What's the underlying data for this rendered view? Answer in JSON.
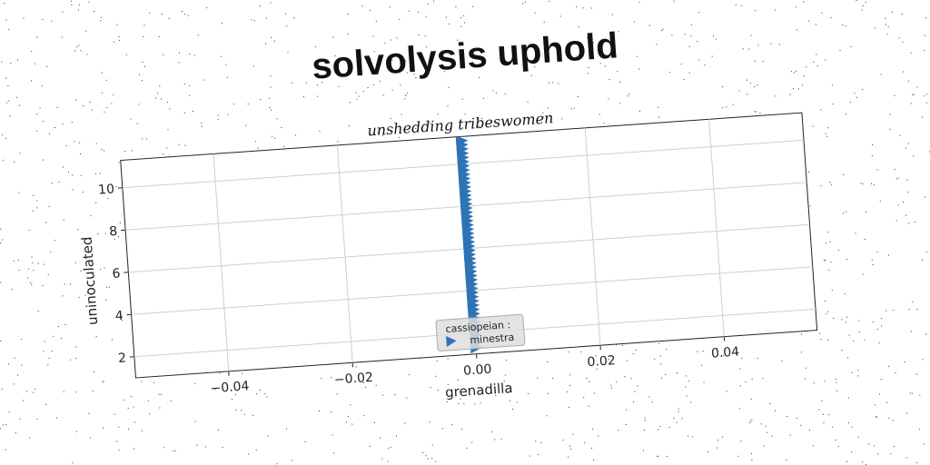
{
  "title": "solvolysis uphold",
  "chart_data": {
    "type": "scatter",
    "subtitle": "unshedding tribeswomen",
    "xlabel": "grenadilla",
    "ylabel": "uninoculated",
    "xlim": [
      -0.055,
      0.055
    ],
    "ylim": [
      1.0,
      11.3
    ],
    "xticks": [
      -0.04,
      -0.02,
      0.0,
      0.02,
      0.04
    ],
    "xtick_labels": [
      "−0.04",
      "−0.02",
      "0.00",
      "0.02",
      "0.04"
    ],
    "yticks": [
      2,
      4,
      6,
      8,
      10
    ],
    "ytick_labels": [
      "2",
      "4",
      "6",
      "8",
      "10"
    ],
    "grid": true,
    "marker": "triangle-right",
    "color": "#2e74b5",
    "legend_placement": "lower-center",
    "series": [
      {
        "name": "cassiopeian : minestra",
        "x": [
          0,
          0,
          0,
          0,
          0,
          0,
          0,
          0,
          0,
          0,
          0,
          0,
          0,
          0,
          0,
          0,
          0,
          0,
          0,
          0,
          0,
          0,
          0,
          0,
          0,
          0,
          0,
          0,
          0,
          0,
          0,
          0,
          0,
          0,
          0,
          0,
          0,
          0,
          0,
          0,
          0,
          0,
          0,
          0,
          0,
          0,
          0,
          0,
          0,
          0
        ],
        "y": [
          1.3,
          1.5,
          1.7,
          1.9,
          2.1,
          2.3,
          2.5,
          2.7,
          2.9,
          3.1,
          3.3,
          3.5,
          3.7,
          3.9,
          4.1,
          4.3,
          4.5,
          4.7,
          4.9,
          5.1,
          5.3,
          5.5,
          5.7,
          5.9,
          6.1,
          6.3,
          6.5,
          6.7,
          6.9,
          7.1,
          7.3,
          7.5,
          7.7,
          7.9,
          8.1,
          8.3,
          8.5,
          8.7,
          8.9,
          9.1,
          9.3,
          9.5,
          9.7,
          9.9,
          10.1,
          10.3,
          10.5,
          10.7,
          10.9,
          11.1
        ]
      }
    ]
  }
}
